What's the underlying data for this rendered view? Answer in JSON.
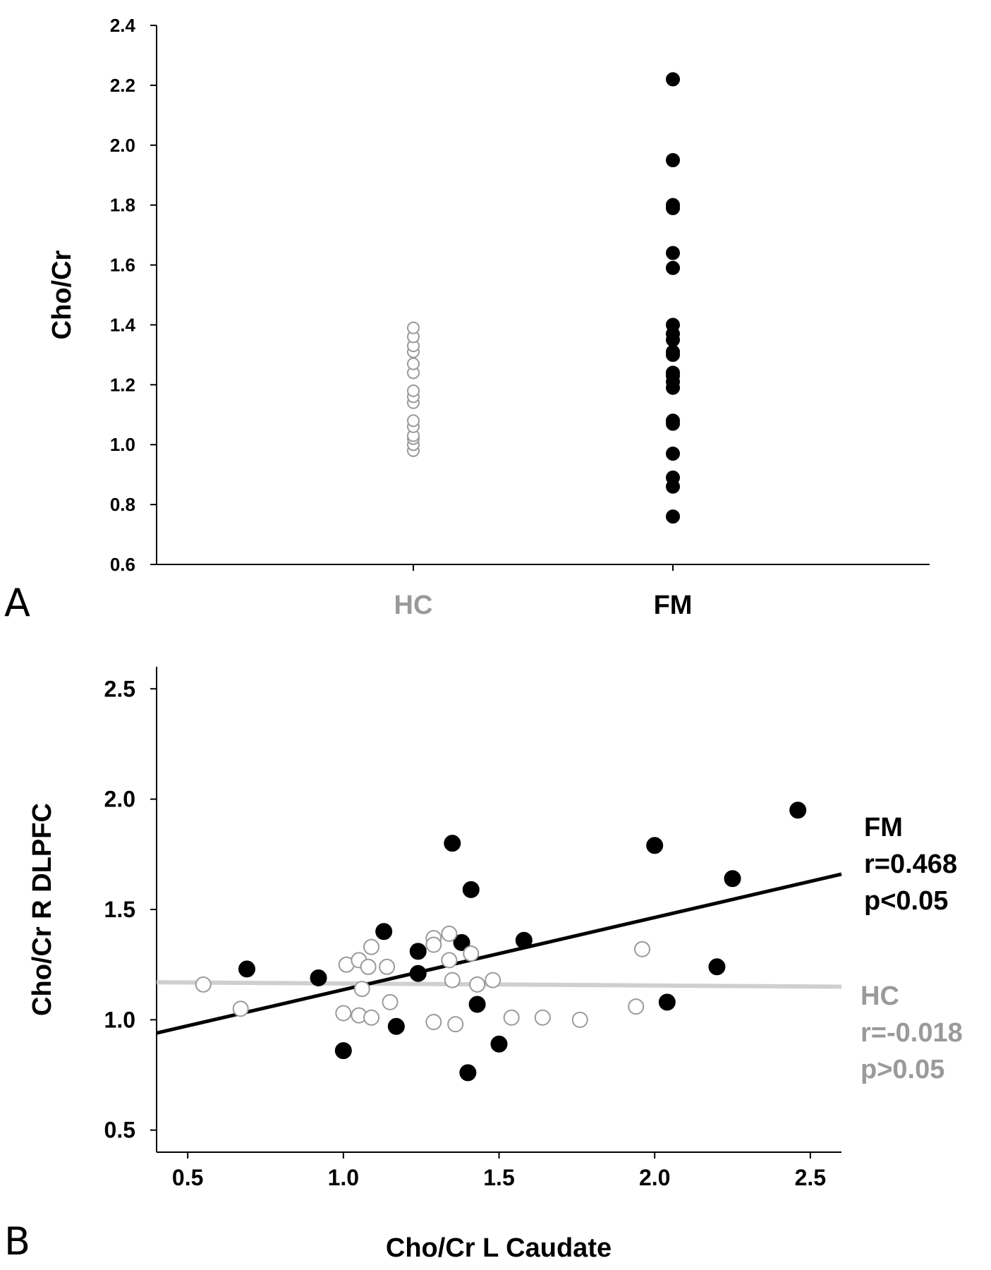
{
  "charts": {
    "a": {
      "chart_data": {
        "type": "scatter",
        "panel_label": "A",
        "ylabel": "Cho/Cr",
        "ylim": [
          0.6,
          2.4
        ],
        "y_ticks": [
          "0.6",
          "0.8",
          "1.0",
          "1.2",
          "1.4",
          "1.6",
          "1.8",
          "2.0",
          "2.2",
          "2.4"
        ],
        "categories": [
          "HC",
          "FM"
        ],
        "series": [
          {
            "name": "HC",
            "category": "HC",
            "color": "#9a9a9a",
            "marker": "open-circle",
            "values": [
              0.98,
              1.0,
              1.02,
              1.03,
              1.06,
              1.08,
              1.14,
              1.16,
              1.18,
              1.24,
              1.27,
              1.31,
              1.33,
              1.36,
              1.39
            ]
          },
          {
            "name": "FM",
            "category": "FM",
            "color": "#000000",
            "marker": "filled-circle",
            "values": [
              0.76,
              0.86,
              0.89,
              0.97,
              1.07,
              1.08,
              1.19,
              1.21,
              1.23,
              1.24,
              1.3,
              1.31,
              1.35,
              1.37,
              1.4,
              1.59,
              1.64,
              1.79,
              1.8,
              1.95,
              2.22
            ]
          }
        ]
      }
    },
    "b": {
      "chart_data": {
        "type": "scatter",
        "panel_label": "B",
        "xlabel": "Cho/Cr L Caudate",
        "ylabel": "Cho/Cr R DLPFC",
        "xlim": [
          0.4,
          2.6
        ],
        "ylim": [
          0.4,
          2.6
        ],
        "x_ticks": [
          "0.5",
          "1.0",
          "1.5",
          "2.0",
          "2.5"
        ],
        "y_ticks": [
          "0.5",
          "1.0",
          "1.5",
          "2.0",
          "2.5"
        ],
        "series": [
          {
            "name": "FM",
            "color": "#000000",
            "marker": "filled-circle",
            "points": [
              [
                0.69,
                1.23
              ],
              [
                0.92,
                1.19
              ],
              [
                1.0,
                0.86
              ],
              [
                1.13,
                1.4
              ],
              [
                1.17,
                0.97
              ],
              [
                1.24,
                1.31
              ],
              [
                1.24,
                1.21
              ],
              [
                1.35,
                1.8
              ],
              [
                1.38,
                1.35
              ],
              [
                1.4,
                0.76
              ],
              [
                1.41,
                1.59
              ],
              [
                1.43,
                1.07
              ],
              [
                1.5,
                0.89
              ],
              [
                1.58,
                1.36
              ],
              [
                2.0,
                1.79
              ],
              [
                2.04,
                1.08
              ],
              [
                2.2,
                1.24
              ],
              [
                2.25,
                1.64
              ],
              [
                2.46,
                1.95
              ]
            ],
            "trend": [
              [
                0.4,
                0.94
              ],
              [
                2.6,
                1.66
              ]
            ]
          },
          {
            "name": "HC",
            "color": "#9a9a9a",
            "marker": "open-circle",
            "points": [
              [
                0.55,
                1.16
              ],
              [
                0.67,
                1.05
              ],
              [
                1.0,
                1.03
              ],
              [
                1.01,
                1.25
              ],
              [
                1.05,
                1.27
              ],
              [
                1.05,
                1.02
              ],
              [
                1.06,
                1.14
              ],
              [
                1.08,
                1.24
              ],
              [
                1.09,
                1.33
              ],
              [
                1.09,
                1.01
              ],
              [
                1.14,
                1.24
              ],
              [
                1.15,
                1.08
              ],
              [
                1.29,
                0.99
              ],
              [
                1.29,
                1.37
              ],
              [
                1.29,
                1.34
              ],
              [
                1.34,
                1.39
              ],
              [
                1.34,
                1.27
              ],
              [
                1.35,
                1.18
              ],
              [
                1.36,
                0.98
              ],
              [
                1.41,
                1.3
              ],
              [
                1.43,
                1.16
              ],
              [
                1.48,
                1.18
              ],
              [
                1.54,
                1.01
              ],
              [
                1.64,
                1.01
              ],
              [
                1.76,
                1.0
              ],
              [
                1.94,
                1.06
              ],
              [
                1.96,
                1.32
              ]
            ],
            "trend": [
              [
                0.4,
                1.17
              ],
              [
                2.6,
                1.15
              ]
            ]
          }
        ],
        "annotations": {
          "fm": [
            "FM",
            "r=0.468",
            "p<0.05"
          ],
          "hc": [
            "HC",
            "r=-0.018",
            "p>0.05"
          ]
        }
      }
    }
  }
}
